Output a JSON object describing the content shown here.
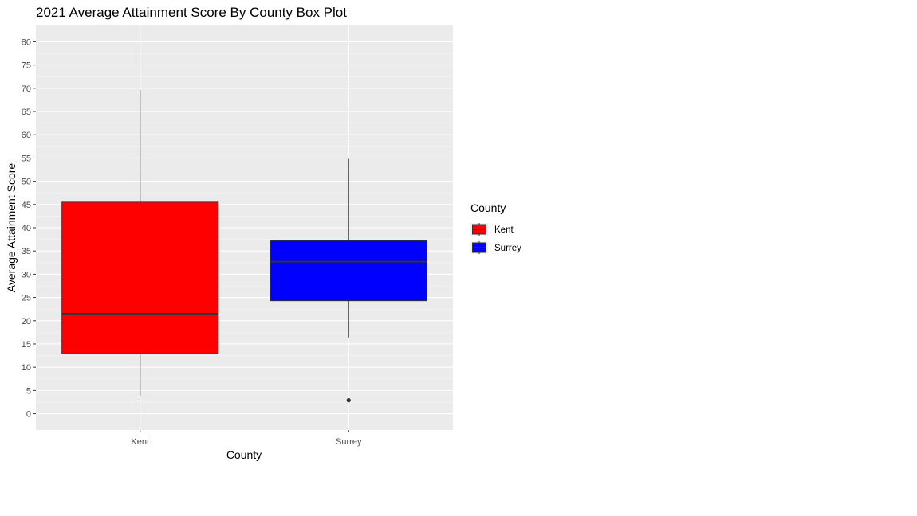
{
  "chart_data": {
    "type": "box",
    "title": "2021 Average Attainment Score By County Box Plot",
    "xlabel": "County",
    "ylabel": "Average Attainment Score",
    "categories": [
      "Kent",
      "Surrey"
    ],
    "ylim": [
      -3.5,
      83.5
    ],
    "yticks": [
      0,
      5,
      10,
      15,
      20,
      25,
      30,
      35,
      40,
      45,
      50,
      55,
      60,
      65,
      70,
      75,
      80
    ],
    "grid": true,
    "boxes": [
      {
        "category": "Kent",
        "color": "#ff0000",
        "whisker_low": 3.9,
        "q1": 12.9,
        "median": 21.5,
        "q3": 45.5,
        "whisker_high": 69.6,
        "outliers": []
      },
      {
        "category": "Surrey",
        "color": "#0000ff",
        "whisker_low": 16.4,
        "q1": 24.3,
        "median": 32.7,
        "q3": 37.2,
        "whisker_high": 54.8,
        "outliers": [
          2.9
        ]
      }
    ],
    "legend": {
      "title": "County",
      "position": "right",
      "entries": [
        {
          "label": "Kent",
          "color": "#ff0000"
        },
        {
          "label": "Surrey",
          "color": "#0000ff"
        }
      ]
    }
  }
}
